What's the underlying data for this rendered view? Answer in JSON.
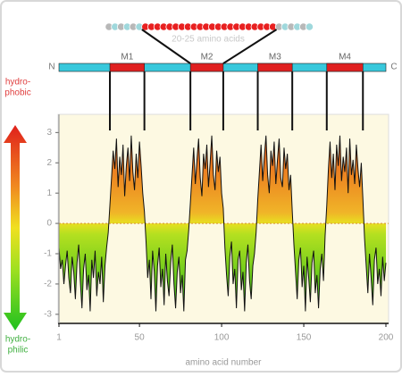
{
  "chart_data": {
    "type": "line",
    "chain_label": "20-25 amino acids",
    "n_label": "N",
    "c_label": "C",
    "hydrophobic_label": [
      "hydro-",
      "phobic"
    ],
    "hydrophilic_label": [
      "hydro-",
      "philic"
    ],
    "xlabel": "amino acid number",
    "color": "#111111",
    "zero_line": true,
    "segments": [
      {
        "label": "M1",
        "start": 32,
        "end": 53
      },
      {
        "label": "M2",
        "start": 81,
        "end": 101
      },
      {
        "label": "M3",
        "start": 122,
        "end": 143
      },
      {
        "label": "M4",
        "start": 164,
        "end": 186
      }
    ],
    "xlim": [
      1,
      200
    ],
    "xticks": [
      1,
      50,
      100,
      150,
      200
    ],
    "ylim": [
      -3.3,
      3.6
    ],
    "yticks": [
      3,
      2,
      1,
      0,
      -1,
      -2,
      -3
    ],
    "x": [
      1,
      2,
      3,
      4,
      5,
      6,
      7,
      8,
      9,
      10,
      11,
      12,
      13,
      14,
      15,
      16,
      17,
      18,
      19,
      20,
      21,
      22,
      23,
      24,
      25,
      26,
      27,
      28,
      29,
      30,
      31,
      32,
      33,
      34,
      35,
      36,
      37,
      38,
      39,
      40,
      41,
      42,
      43,
      44,
      45,
      46,
      47,
      48,
      49,
      50,
      51,
      52,
      53,
      54,
      55,
      56,
      57,
      58,
      59,
      60,
      61,
      62,
      63,
      64,
      65,
      66,
      67,
      68,
      69,
      70,
      71,
      72,
      73,
      74,
      75,
      76,
      77,
      78,
      79,
      80,
      81,
      82,
      83,
      84,
      85,
      86,
      87,
      88,
      89,
      90,
      91,
      92,
      93,
      94,
      95,
      96,
      97,
      98,
      99,
      100,
      101,
      102,
      103,
      104,
      105,
      106,
      107,
      108,
      109,
      110,
      111,
      112,
      113,
      114,
      115,
      116,
      117,
      118,
      119,
      120,
      121,
      122,
      123,
      124,
      125,
      126,
      127,
      128,
      129,
      130,
      131,
      132,
      133,
      134,
      135,
      136,
      137,
      138,
      139,
      140,
      141,
      142,
      143,
      144,
      145,
      146,
      147,
      148,
      149,
      150,
      151,
      152,
      153,
      154,
      155,
      156,
      157,
      158,
      159,
      160,
      161,
      162,
      163,
      164,
      165,
      166,
      167,
      168,
      169,
      170,
      171,
      172,
      173,
      174,
      175,
      176,
      177,
      178,
      179,
      180,
      181,
      182,
      183,
      184,
      185,
      186,
      187,
      188,
      189,
      190,
      191,
      192,
      193,
      194,
      195,
      196,
      197,
      198,
      199,
      200
    ],
    "values": [
      -0.8,
      -1.5,
      -1.2,
      -2.0,
      -1.4,
      -0.9,
      -1.8,
      -2.3,
      -1.1,
      -1.6,
      -2.5,
      -1.3,
      -0.7,
      -1.9,
      -2.8,
      -1.5,
      -1.0,
      -2.2,
      -1.7,
      -2.9,
      -1.2,
      -1.8,
      -0.9,
      -2.4,
      -1.6,
      -2.0,
      -1.1,
      -2.6,
      -1.4,
      -0.8,
      -0.3,
      0.6,
      1.5,
      2.4,
      1.8,
      2.8,
      1.2,
      2.2,
      1.6,
      2.6,
      0.9,
      1.9,
      2.5,
      1.4,
      2.9,
      1.7,
      1.1,
      2.3,
      1.5,
      2.7,
      1.9,
      1.0,
      0.4,
      -0.6,
      -1.8,
      -1.2,
      -2.5,
      -0.9,
      -1.6,
      -2.9,
      -1.4,
      -0.8,
      -2.1,
      -1.5,
      -2.7,
      -1.0,
      -1.9,
      -2.4,
      -1.3,
      -0.7,
      -2.0,
      -2.8,
      -1.6,
      -1.1,
      -2.3,
      -1.7,
      -2.9,
      -1.2,
      -0.9,
      -0.2,
      0.7,
      1.6,
      2.5,
      1.3,
      2.1,
      2.8,
      1.5,
      0.9,
      2.3,
      1.8,
      2.6,
      1.2,
      2.0,
      2.9,
      1.6,
      1.1,
      2.4,
      1.7,
      2.2,
      1.0,
      0.5,
      -0.8,
      -1.7,
      -2.4,
      -1.1,
      -0.6,
      -2.0,
      -1.5,
      -2.8,
      -1.2,
      -0.9,
      -2.2,
      -1.6,
      -2.9,
      -1.3,
      -0.7,
      -1.9,
      -2.5,
      -1.4,
      -1.0,
      -0.3,
      0.8,
      1.7,
      2.6,
      1.4,
      2.2,
      2.9,
      1.6,
      1.0,
      2.4,
      1.9,
      2.7,
      1.3,
      2.1,
      2.8,
      1.5,
      1.2,
      2.5,
      1.8,
      2.3,
      1.1,
      1.6,
      0.4,
      -0.7,
      -1.6,
      -2.5,
      -1.2,
      -0.8,
      -2.1,
      -1.4,
      -2.9,
      -1.1,
      -1.8,
      -2.6,
      -1.3,
      -0.9,
      -2.3,
      -1.7,
      -2.8,
      -1.5,
      -1.0,
      -1.9,
      -0.4,
      0.6,
      1.8,
      2.7,
      1.5,
      2.3,
      1.1,
      2.6,
      1.9,
      2.9,
      1.4,
      2.2,
      1.7,
      2.5,
      1.0,
      2.8,
      1.6,
      2.1,
      1.3,
      2.6,
      1.8,
      1.2,
      2.0,
      0.8,
      -0.5,
      -1.4,
      -2.3,
      -1.0,
      -1.8,
      -2.7,
      -1.2,
      -0.8,
      -2.0,
      -1.5,
      -2.4,
      -1.1,
      -1.9,
      -1.3
    ]
  }
}
